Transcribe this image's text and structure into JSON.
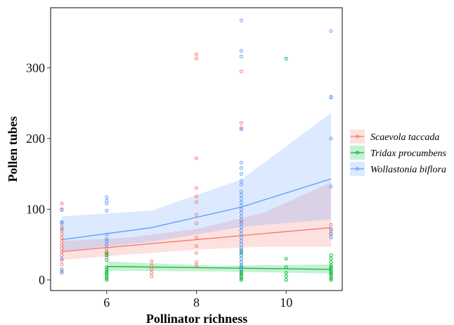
{
  "chart_data": {
    "type": "scatter",
    "title": "",
    "xlabel": "Pollinator richness",
    "ylabel": "Pollen tubes",
    "xlim": [
      4.75,
      11.25
    ],
    "ylim": [
      -15,
      385
    ],
    "x_ticks": [
      6,
      8,
      10
    ],
    "y_ticks": [
      0,
      100,
      200,
      300
    ],
    "grid": false,
    "legend_position": "right",
    "series": [
      {
        "name": "Scaevola taccada",
        "color": "#F8766D",
        "points": [
          [
            5,
            108
          ],
          [
            5,
            100
          ],
          [
            5,
            82
          ],
          [
            5,
            75
          ],
          [
            5,
            70
          ],
          [
            5,
            65
          ],
          [
            5,
            60
          ],
          [
            5,
            55
          ],
          [
            5,
            50
          ],
          [
            5,
            45
          ],
          [
            5,
            40
          ],
          [
            5,
            35
          ],
          [
            5,
            28
          ],
          [
            5,
            22
          ],
          [
            5,
            15
          ],
          [
            5,
            12
          ],
          [
            6,
            55
          ],
          [
            6,
            50
          ],
          [
            6,
            45
          ],
          [
            6,
            40
          ],
          [
            6,
            36
          ],
          [
            6,
            32
          ],
          [
            7,
            26
          ],
          [
            7,
            20
          ],
          [
            7,
            15
          ],
          [
            7,
            10
          ],
          [
            7,
            5
          ],
          [
            8,
            319
          ],
          [
            8,
            313
          ],
          [
            8,
            172
          ],
          [
            8,
            130
          ],
          [
            8,
            118
          ],
          [
            8,
            110
          ],
          [
            8,
            92
          ],
          [
            8,
            80
          ],
          [
            8,
            60
          ],
          [
            8,
            48
          ],
          [
            8,
            38
          ],
          [
            8,
            25
          ],
          [
            8,
            20
          ],
          [
            9,
            295
          ],
          [
            9,
            222
          ],
          [
            9,
            215
          ],
          [
            9,
            100
          ],
          [
            9,
            90
          ],
          [
            9,
            82
          ],
          [
            9,
            75
          ],
          [
            9,
            70
          ],
          [
            9,
            65
          ],
          [
            9,
            60
          ],
          [
            9,
            55
          ],
          [
            9,
            50
          ],
          [
            9,
            45
          ],
          [
            9,
            40
          ],
          [
            9,
            35
          ],
          [
            9,
            30
          ],
          [
            9,
            25
          ],
          [
            9,
            20
          ],
          [
            9,
            15
          ],
          [
            9,
            10
          ],
          [
            9,
            5
          ],
          [
            11,
            78
          ],
          [
            11,
            70
          ],
          [
            11,
            65
          ],
          [
            11,
            60
          ]
        ],
        "fit": {
          "x": [
            5,
            11
          ],
          "y": [
            40,
            74
          ]
        },
        "band": {
          "x": [
            5,
            6.5,
            8,
            9.5,
            11
          ],
          "lower": [
            28,
            36,
            43,
            47,
            47
          ],
          "upper": [
            55,
            60,
            72,
            95,
            138
          ]
        }
      },
      {
        "name": "Tridax procumbens",
        "color": "#00BA38",
        "points": [
          [
            6,
            38
          ],
          [
            6,
            35
          ],
          [
            6,
            28
          ],
          [
            6,
            18
          ],
          [
            6,
            15
          ],
          [
            6,
            12
          ],
          [
            6,
            10
          ],
          [
            6,
            8
          ],
          [
            6,
            5
          ],
          [
            6,
            2
          ],
          [
            6,
            0
          ],
          [
            9,
            42
          ],
          [
            9,
            38
          ],
          [
            9,
            35
          ],
          [
            9,
            30
          ],
          [
            9,
            25
          ],
          [
            9,
            20
          ],
          [
            9,
            18
          ],
          [
            9,
            15
          ],
          [
            9,
            12
          ],
          [
            9,
            10
          ],
          [
            9,
            8
          ],
          [
            9,
            5
          ],
          [
            9,
            2
          ],
          [
            9,
            0
          ],
          [
            10,
            313
          ],
          [
            10,
            30
          ],
          [
            10,
            18
          ],
          [
            10,
            10
          ],
          [
            10,
            5
          ],
          [
            10,
            0
          ],
          [
            11,
            35
          ],
          [
            11,
            30
          ],
          [
            11,
            25
          ],
          [
            11,
            20
          ],
          [
            11,
            18
          ],
          [
            11,
            15
          ],
          [
            11,
            12
          ],
          [
            11,
            10
          ],
          [
            11,
            8
          ],
          [
            11,
            5
          ],
          [
            11,
            2
          ],
          [
            11,
            0
          ]
        ],
        "fit": {
          "x": [
            6,
            11
          ],
          "y": [
            19,
            15
          ]
        },
        "band": {
          "x": [
            6,
            8.5,
            11
          ],
          "lower": [
            13,
            12,
            9
          ],
          "upper": [
            26,
            20,
            22
          ]
        }
      },
      {
        "name": "Wollastonia biflora",
        "color": "#619CFF",
        "points": [
          [
            5,
            99
          ],
          [
            5,
            82
          ],
          [
            5,
            80
          ],
          [
            5,
            72
          ],
          [
            5,
            30
          ],
          [
            5,
            15
          ],
          [
            5,
            10
          ],
          [
            6,
            117
          ],
          [
            6,
            112
          ],
          [
            6,
            108
          ],
          [
            6,
            98
          ],
          [
            6,
            64
          ],
          [
            6,
            58
          ],
          [
            6,
            55
          ],
          [
            6,
            50
          ],
          [
            9,
            367
          ],
          [
            9,
            324
          ],
          [
            9,
            316
          ],
          [
            9,
            213
          ],
          [
            9,
            166
          ],
          [
            9,
            158
          ],
          [
            9,
            150
          ],
          [
            9,
            140
          ],
          [
            9,
            135
          ],
          [
            9,
            125
          ],
          [
            9,
            120
          ],
          [
            9,
            115
          ],
          [
            9,
            110
          ],
          [
            9,
            105
          ],
          [
            9,
            100
          ],
          [
            9,
            95
          ],
          [
            9,
            90
          ],
          [
            9,
            85
          ],
          [
            9,
            80
          ],
          [
            9,
            75
          ],
          [
            9,
            70
          ],
          [
            9,
            65
          ],
          [
            9,
            60
          ],
          [
            9,
            55
          ],
          [
            9,
            50
          ],
          [
            9,
            45
          ],
          [
            9,
            40
          ],
          [
            9,
            35
          ],
          [
            9,
            30
          ],
          [
            9,
            25
          ],
          [
            9,
            20
          ],
          [
            9,
            15
          ],
          [
            11,
            352
          ],
          [
            11,
            259
          ],
          [
            11,
            258
          ],
          [
            11,
            200
          ],
          [
            11,
            132
          ],
          [
            11,
            72
          ],
          [
            11,
            66
          ],
          [
            11,
            60
          ]
        ],
        "fit": {
          "x": [
            5,
            7,
            9,
            11
          ],
          "y": [
            57,
            74,
            103,
            143
          ]
        },
        "band": {
          "x": [
            5,
            7,
            9,
            11
          ],
          "lower": [
            40,
            54,
            75,
            86
          ],
          "upper": [
            90,
            98,
            142,
            236
          ]
        }
      }
    ]
  }
}
